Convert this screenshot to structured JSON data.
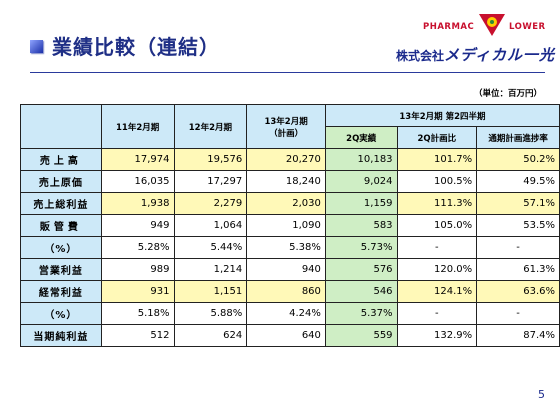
{
  "slide": {
    "title": "業績比較（連結）",
    "unit": "（単位：百万円）",
    "page_number": "5"
  },
  "logo": {
    "left_word": "PHARMAC",
    "right_word": "LOWER",
    "company_prefix": "株式会社",
    "company_name": "メディカル一光"
  },
  "table": {
    "col_headers": [
      "11年2月期",
      "12年2月期",
      "13年2月期",
      "（計画）"
    ],
    "group_header": "13年2月期 第2四半期",
    "sub_headers": [
      "2Q実績",
      "2Q計画比",
      "通期計画進捗率"
    ],
    "rows": [
      {
        "label": "売上高",
        "cells": [
          "17,974",
          "19,576",
          "20,270",
          "10,183",
          "101.7%",
          "50.2%"
        ]
      },
      {
        "label": "売上原価",
        "cells": [
          "16,035",
          "17,297",
          "18,240",
          "9,024",
          "100.5%",
          "49.5%"
        ]
      },
      {
        "label": "売上総利益",
        "cells": [
          "1,938",
          "2,279",
          "2,030",
          "1,159",
          "111.3%",
          "57.1%"
        ]
      },
      {
        "label": "販管費",
        "cells": [
          "949",
          "1,064",
          "1,090",
          "583",
          "105.0%",
          "53.5%"
        ]
      },
      {
        "label": "（%）",
        "cells": [
          "5.28%",
          "5.44%",
          "5.38%",
          "5.73%",
          "-",
          "-"
        ]
      },
      {
        "label": "営業利益",
        "cells": [
          "989",
          "1,214",
          "940",
          "576",
          "120.0%",
          "61.3%"
        ]
      },
      {
        "label": "経常利益",
        "cells": [
          "931",
          "1,151",
          "860",
          "546",
          "124.1%",
          "63.6%"
        ]
      },
      {
        "label": "（%）",
        "cells": [
          "5.18%",
          "5.88%",
          "4.24%",
          "5.37%",
          "-",
          "-"
        ]
      },
      {
        "label": "当期純利益",
        "cells": [
          "512",
          "624",
          "640",
          "559",
          "132.9%",
          "87.4%"
        ]
      }
    ]
  }
}
